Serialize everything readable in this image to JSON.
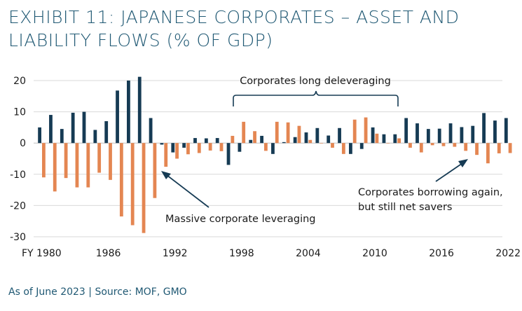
{
  "title": {
    "line1": "EXHIBIT 11: JAPANESE CORPORATES – ASSET AND",
    "line2": "LIABILITY FLOWS (% OF GDP)"
  },
  "source": "As of June 2023 | Source: MOF, GMO",
  "colors": {
    "assets": "#163b54",
    "liabilities": "#e48652",
    "grid": "#d9d9d9",
    "text": "#1a1a1a",
    "title": "#1f5873"
  },
  "chart_data": {
    "type": "bar",
    "ylim": [
      -30,
      20
    ],
    "yticks": [
      20,
      10,
      0,
      -10,
      -20,
      -30
    ],
    "xtick_labels": [
      {
        "year": 1980,
        "label": "FY 1980"
      },
      {
        "year": 1986,
        "label": "1986"
      },
      {
        "year": 1992,
        "label": "1992"
      },
      {
        "year": 1998,
        "label": "1998"
      },
      {
        "year": 2004,
        "label": "2004"
      },
      {
        "year": 2010,
        "label": "2010"
      },
      {
        "year": 2016,
        "label": "2016"
      },
      {
        "year": 2022,
        "label": "2022"
      }
    ],
    "categories": [
      1980,
      1981,
      1982,
      1983,
      1984,
      1985,
      1986,
      1987,
      1988,
      1989,
      1990,
      1991,
      1992,
      1993,
      1994,
      1995,
      1996,
      1997,
      1998,
      1999,
      2000,
      2001,
      2002,
      2003,
      2004,
      2005,
      2006,
      2007,
      2008,
      2009,
      2010,
      2011,
      2012,
      2013,
      2014,
      2015,
      2016,
      2017,
      2018,
      2019,
      2020,
      2021,
      2022
    ],
    "series": [
      {
        "color_key": "assets",
        "values": [
          5.0,
          9.0,
          4.5,
          9.7,
          10.0,
          4.2,
          7.0,
          16.8,
          20.0,
          21.2,
          8.0,
          -0.5,
          -3.0,
          -1.5,
          1.6,
          1.5,
          1.6,
          -7.0,
          -2.8,
          1.0,
          2.3,
          -3.5,
          0.3,
          1.9,
          3.4,
          4.8,
          2.4,
          4.8,
          -3.5,
          -1.9,
          5.0,
          2.8,
          2.8,
          8.0,
          6.3,
          4.5,
          4.6,
          6.3,
          5.1,
          5.5,
          9.6,
          7.2,
          8.0
        ]
      },
      {
        "color_key": "liabilities",
        "values": [
          -11.0,
          -15.5,
          -11.2,
          -14.2,
          -14.2,
          -9.5,
          -11.8,
          -23.5,
          -26.3,
          -28.8,
          -17.6,
          -7.6,
          -5.0,
          -3.6,
          -3.2,
          -2.4,
          -2.6,
          2.3,
          6.8,
          3.8,
          -2.5,
          6.8,
          6.6,
          5.5,
          1.0,
          0.0,
          -1.5,
          -3.5,
          7.5,
          8.2,
          3.0,
          0.0,
          1.5,
          -1.5,
          -3.0,
          -0.7,
          -1.0,
          -1.2,
          -2.5,
          -3.8,
          -6.5,
          -3.3,
          -3.2
        ]
      }
    ],
    "annotations": {
      "deleveraging": "Corporates long deleveraging",
      "leveraging": "Massive corporate leveraging",
      "borrowing_line1": "Corporates borrowing again,",
      "borrowing_line2": "but still net savers"
    }
  }
}
